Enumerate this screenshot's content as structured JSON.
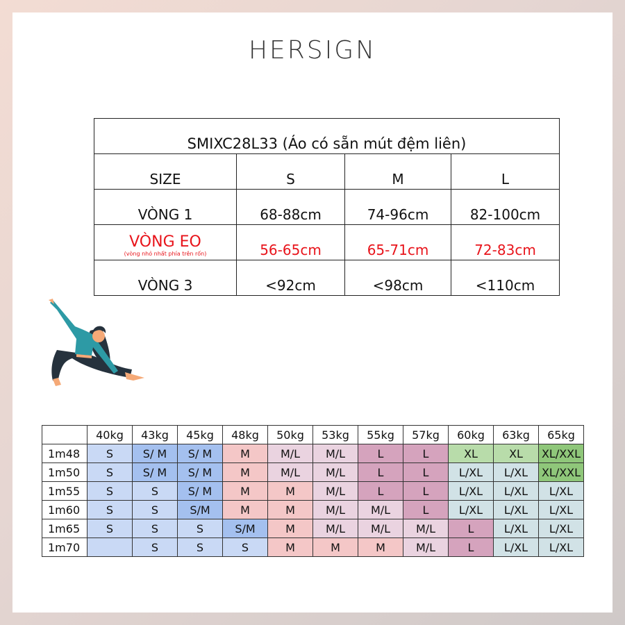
{
  "brand": {
    "logo": "HERSIGN"
  },
  "size_table": {
    "title": "SMIXC28L33 (Áo có sẵn mút đệm liên)",
    "header": [
      "SIZE",
      "S",
      "M",
      "L"
    ],
    "rows": [
      {
        "label": "VÒNG 1",
        "values": [
          "68-88cm",
          "74-96cm",
          "82-100cm"
        ]
      },
      {
        "label": "VÒNG EO",
        "note": "(vòng nhỏ nhất phía trên rốn)",
        "values": [
          "56-65cm",
          "65-71cm",
          "72-83cm"
        ],
        "highlight_color": "#e8141b"
      },
      {
        "label": "VÒNG 3",
        "values": [
          "<92cm",
          "<98cm",
          "<110cm"
        ]
      }
    ]
  },
  "illustration": {
    "icon": "yoga-woman-illustration"
  },
  "palette": {
    "lb": "#c9d9f5",
    "mb": "#a4c0ef",
    "sa": "#f4c7c7",
    "lp": "#ead3e0",
    "ma": "#d5a3bd",
    "lg": "#b8dcaa",
    "dg": "#8fc77a",
    "te": "#d1e2e6"
  },
  "chart_data": {
    "type": "table",
    "columns": [
      "",
      "40kg",
      "43kg",
      "45kg",
      "48kg",
      "50kg",
      "53kg",
      "55kg",
      "57kg",
      "60kg",
      "63kg",
      "65kg"
    ],
    "rows": [
      {
        "height": "1m48",
        "cells": [
          [
            "S",
            "lb"
          ],
          [
            "S/ M",
            "mb"
          ],
          [
            "S/ M",
            "mb"
          ],
          [
            "M",
            "sa"
          ],
          [
            "M/L",
            "lp"
          ],
          [
            "M/L",
            "lp"
          ],
          [
            "L",
            "ma"
          ],
          [
            "L",
            "ma"
          ],
          [
            "XL",
            "lg"
          ],
          [
            "XL",
            "lg"
          ],
          [
            "XL/XXL",
            "dg"
          ]
        ]
      },
      {
        "height": "1m50",
        "cells": [
          [
            "S",
            "lb"
          ],
          [
            "S/ M",
            "mb"
          ],
          [
            "S/ M",
            "mb"
          ],
          [
            "M",
            "sa"
          ],
          [
            "M/L",
            "lp"
          ],
          [
            "M/L",
            "lp"
          ],
          [
            "L",
            "ma"
          ],
          [
            "L",
            "ma"
          ],
          [
            "L/XL",
            "te"
          ],
          [
            "L/XL",
            "te"
          ],
          [
            "XL/XXL",
            "dg"
          ]
        ]
      },
      {
        "height": "1m55",
        "cells": [
          [
            "S",
            "lb"
          ],
          [
            "S",
            "lb"
          ],
          [
            "S/ M",
            "mb"
          ],
          [
            "M",
            "sa"
          ],
          [
            "M",
            "sa"
          ],
          [
            "M/L",
            "lp"
          ],
          [
            "L",
            "ma"
          ],
          [
            "L",
            "ma"
          ],
          [
            "L/XL",
            "te"
          ],
          [
            "L/XL",
            "te"
          ],
          [
            "L/XL",
            "te"
          ]
        ]
      },
      {
        "height": "1m60",
        "cells": [
          [
            "S",
            "lb"
          ],
          [
            "S",
            "lb"
          ],
          [
            "S/M",
            "mb"
          ],
          [
            "M",
            "sa"
          ],
          [
            "M",
            "sa"
          ],
          [
            "M/L",
            "lp"
          ],
          [
            "M/L",
            "lp"
          ],
          [
            "L",
            "ma"
          ],
          [
            "L/XL",
            "te"
          ],
          [
            "L/XL",
            "te"
          ],
          [
            "L/XL",
            "te"
          ]
        ]
      },
      {
        "height": "1m65",
        "cells": [
          [
            "S",
            "lb"
          ],
          [
            "S",
            "lb"
          ],
          [
            "S",
            "lb"
          ],
          [
            "S/M",
            "mb"
          ],
          [
            "M",
            "sa"
          ],
          [
            "M/L",
            "lp"
          ],
          [
            "M/L",
            "lp"
          ],
          [
            "M/L",
            "lp"
          ],
          [
            "L",
            "ma"
          ],
          [
            "L/XL",
            "te"
          ],
          [
            "L/XL",
            "te"
          ]
        ]
      },
      {
        "height": "1m70",
        "cells": [
          [
            "",
            "lb"
          ],
          [
            "S",
            "lb"
          ],
          [
            "S",
            "lb"
          ],
          [
            "S",
            "lb"
          ],
          [
            "M",
            "sa"
          ],
          [
            "M",
            "sa"
          ],
          [
            "M",
            "sa"
          ],
          [
            "M/L",
            "lp"
          ],
          [
            "L",
            "ma"
          ],
          [
            "L/XL",
            "te"
          ],
          [
            "L/XL",
            "te"
          ]
        ]
      }
    ]
  }
}
